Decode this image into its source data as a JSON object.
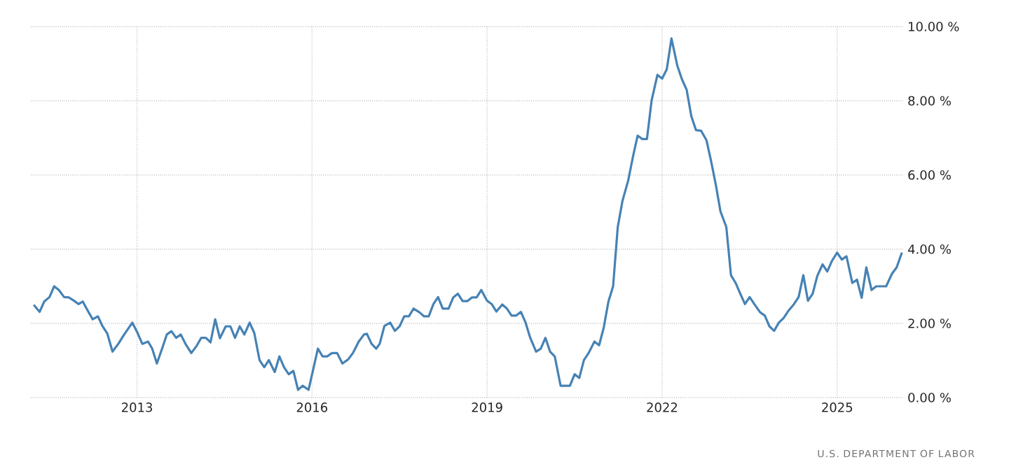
{
  "chart_data": {
    "type": "line",
    "color": "#4682b4",
    "grid": true,
    "xlim": [
      2011.18,
      2026.12
    ],
    "xticks": [
      2013,
      2016,
      2019,
      2022,
      2025
    ],
    "ylim": [
      0,
      10
    ],
    "yticks": [
      {
        "value": 0,
        "label": "0.00 %"
      },
      {
        "value": 2,
        "label": "2.00 %"
      },
      {
        "value": 4,
        "label": "4.00 %"
      },
      {
        "value": 6,
        "label": "6.00 %"
      },
      {
        "value": 8,
        "label": "8.00 %"
      },
      {
        "value": 10,
        "label": "10.00 %"
      }
    ],
    "x": [
      2011.23,
      2011.33,
      2011.41,
      2011.5,
      2011.58,
      2011.66,
      2011.75,
      2011.83,
      2011.92,
      2012.0,
      2012.07,
      2012.16,
      2012.24,
      2012.33,
      2012.41,
      2012.49,
      2012.58,
      2012.68,
      2012.78,
      2012.92,
      2013.01,
      2013.09,
      2013.19,
      2013.26,
      2013.34,
      2013.43,
      2013.51,
      2013.59,
      2013.67,
      2013.75,
      2013.83,
      2013.93,
      2014.02,
      2014.1,
      2014.18,
      2014.26,
      2014.34,
      2014.42,
      2014.52,
      2014.6,
      2014.68,
      2014.76,
      2014.84,
      2014.93,
      2015.01,
      2015.1,
      2015.18,
      2015.26,
      2015.36,
      2015.44,
      2015.52,
      2015.6,
      2015.68,
      2015.76,
      2015.84,
      2015.94,
      2016.02,
      2016.1,
      2016.18,
      2016.26,
      2016.34,
      2016.43,
      2016.52,
      2016.62,
      2016.7,
      2016.8,
      2016.89,
      2016.94,
      2017.02,
      2017.1,
      2017.16,
      2017.24,
      2017.34,
      2017.42,
      2017.5,
      2017.58,
      2017.66,
      2017.74,
      2017.84,
      2017.92,
      2018.0,
      2018.08,
      2018.16,
      2018.24,
      2018.34,
      2018.42,
      2018.5,
      2018.58,
      2018.66,
      2018.74,
      2018.82,
      2018.9,
      2019.0,
      2019.08,
      2019.16,
      2019.26,
      2019.34,
      2019.42,
      2019.5,
      2019.58,
      2019.66,
      2019.74,
      2019.84,
      2019.92,
      2020.0,
      2020.08,
      2020.16,
      2020.26,
      2020.34,
      2020.42,
      2020.5,
      2020.58,
      2020.66,
      2020.74,
      2020.84,
      2020.92,
      2021.0,
      2021.08,
      2021.16,
      2021.24,
      2021.32,
      2021.42,
      2021.5,
      2021.58,
      2021.66,
      2021.74,
      2021.82,
      2021.92,
      2022.0,
      2022.08,
      2022.16,
      2022.26,
      2022.34,
      2022.42,
      2022.5,
      2022.58,
      2022.67,
      2022.76,
      2022.84,
      2022.92,
      2023.0,
      2023.1,
      2023.18,
      2023.26,
      2023.34,
      2023.42,
      2023.5,
      2023.58,
      2023.68,
      2023.76,
      2023.84,
      2023.92,
      2024.0,
      2024.08,
      2024.16,
      2024.26,
      2024.34,
      2024.42,
      2024.5,
      2024.58,
      2024.66,
      2024.75,
      2024.83,
      2024.91,
      2025.0,
      2025.08,
      2025.16,
      2025.26,
      2025.34,
      2025.42,
      2025.5,
      2025.59,
      2025.67,
      2025.84,
      2025.94,
      2026.02,
      2026.11
    ],
    "values": [
      2.5,
      2.31,
      2.59,
      2.71,
      3.0,
      2.9,
      2.71,
      2.7,
      2.61,
      2.52,
      2.59,
      2.33,
      2.11,
      2.19,
      1.92,
      1.73,
      1.24,
      1.45,
      1.7,
      2.02,
      1.74,
      1.45,
      1.51,
      1.32,
      0.92,
      1.32,
      1.7,
      1.79,
      1.61,
      1.7,
      1.45,
      1.2,
      1.39,
      1.61,
      1.61,
      1.49,
      2.11,
      1.6,
      1.92,
      1.92,
      1.61,
      1.92,
      1.7,
      2.02,
      1.74,
      1.01,
      0.82,
      1.01,
      0.69,
      1.11,
      0.82,
      0.63,
      0.72,
      0.21,
      0.32,
      0.21,
      0.76,
      1.32,
      1.11,
      1.11,
      1.2,
      1.2,
      0.92,
      1.03,
      1.2,
      1.51,
      1.7,
      1.72,
      1.45,
      1.32,
      1.45,
      1.93,
      2.02,
      1.8,
      1.92,
      2.19,
      2.19,
      2.4,
      2.3,
      2.19,
      2.19,
      2.52,
      2.71,
      2.4,
      2.4,
      2.7,
      2.8,
      2.6,
      2.6,
      2.7,
      2.7,
      2.9,
      2.61,
      2.52,
      2.32,
      2.51,
      2.4,
      2.21,
      2.21,
      2.31,
      2.02,
      1.61,
      1.24,
      1.32,
      1.61,
      1.24,
      1.11,
      0.32,
      0.32,
      0.32,
      0.63,
      0.53,
      1.01,
      1.2,
      1.51,
      1.41,
      1.89,
      2.59,
      3.0,
      4.6,
      5.3,
      5.86,
      6.49,
      7.06,
      6.97,
      6.97,
      8.01,
      8.7,
      8.6,
      8.85,
      9.68,
      8.95,
      8.58,
      8.3,
      7.59,
      7.21,
      7.19,
      6.94,
      6.37,
      5.74,
      5.02,
      4.6,
      3.3,
      3.09,
      2.8,
      2.52,
      2.71,
      2.52,
      2.3,
      2.21,
      1.92,
      1.8,
      2.02,
      2.14,
      2.33,
      2.52,
      2.71,
      3.3,
      2.61,
      2.8,
      3.28,
      3.59,
      3.4,
      3.68,
      3.91,
      3.72,
      3.81,
      3.09,
      3.18,
      2.69,
      3.51,
      2.9,
      3.0,
      3.0,
      3.34,
      3.51,
      3.91
    ],
    "annotations": [
      "U.S. DEPARTMENT OF LABOR"
    ]
  }
}
